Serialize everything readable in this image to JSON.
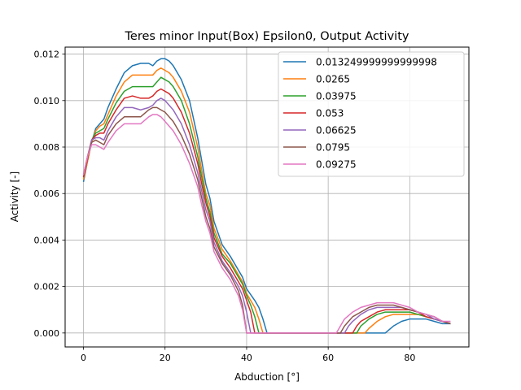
{
  "chart_data": {
    "type": "line",
    "title": "Teres minor Input(Box) Epsilon0, Output Activity",
    "xlabel": "Abduction [°]",
    "ylabel": "Activity [-]",
    "xlim": [
      -4.5,
      94.5
    ],
    "ylim": [
      -0.0006,
      0.0123
    ],
    "xticks": [
      0,
      20,
      40,
      60,
      80
    ],
    "xtick_labels": [
      "0",
      "20",
      "40",
      "60",
      "80"
    ],
    "yticks": [
      0.0,
      0.002,
      0.004,
      0.006,
      0.008,
      0.01,
      0.012
    ],
    "ytick_labels": [
      "0.000",
      "0.002",
      "0.004",
      "0.006",
      "0.008",
      "0.010",
      "0.012"
    ],
    "grid": true,
    "legend_position": "upper-right",
    "series": [
      {
        "name": "0.013249999999999998",
        "color": "#1f77b4",
        "x": [
          0,
          1,
          2,
          3,
          4,
          5,
          6,
          8,
          10,
          12,
          14,
          16,
          17,
          18,
          19,
          20,
          21,
          22,
          24,
          26,
          28,
          29,
          30,
          31,
          32,
          34,
          36,
          38,
          39,
          40,
          42,
          43,
          44,
          45,
          50,
          60,
          70,
          72,
          73,
          74,
          76,
          78,
          80,
          82,
          84,
          86,
          88,
          90
        ],
        "y": [
          0.0065,
          0.0074,
          0.0082,
          0.0088,
          0.009,
          0.0092,
          0.0097,
          0.0105,
          0.0112,
          0.0115,
          0.0116,
          0.0116,
          0.0115,
          0.0117,
          0.0118,
          0.0118,
          0.0117,
          0.0115,
          0.0109,
          0.01,
          0.0084,
          0.0074,
          0.0064,
          0.0058,
          0.0048,
          0.0038,
          0.0033,
          0.0027,
          0.0024,
          0.0019,
          0.0014,
          0.0011,
          0.0006,
          0,
          0,
          0,
          0,
          0,
          0,
          0,
          0.0003,
          0.0005,
          0.0006,
          0.0006,
          0.0006,
          0.0005,
          0.0004,
          0.0004
        ]
      },
      {
        "name": "0.0265",
        "color": "#ff7f0e",
        "x": [
          0,
          1,
          2,
          3,
          4,
          5,
          6,
          8,
          10,
          12,
          14,
          16,
          17,
          18,
          19,
          20,
          21,
          22,
          24,
          26,
          28,
          29,
          30,
          31,
          32,
          34,
          36,
          38,
          39,
          40,
          42,
          43,
          44,
          50,
          60,
          69,
          70,
          72,
          74,
          76,
          78,
          80,
          82,
          84,
          86,
          88,
          90
        ],
        "y": [
          0.0066,
          0.0074,
          0.0082,
          0.0087,
          0.0089,
          0.009,
          0.0094,
          0.0102,
          0.0108,
          0.0111,
          0.0111,
          0.0111,
          0.0111,
          0.0113,
          0.0114,
          0.0113,
          0.0112,
          0.011,
          0.0104,
          0.0095,
          0.008,
          0.007,
          0.006,
          0.0055,
          0.0045,
          0.0036,
          0.0031,
          0.0025,
          0.0022,
          0.0017,
          0.0011,
          0.0006,
          0,
          0,
          0,
          0,
          0.0002,
          0.0005,
          0.0007,
          0.0008,
          0.0008,
          0.0008,
          0.0008,
          0.0007,
          0.0006,
          0.0005,
          0.0004
        ]
      },
      {
        "name": "0.03975",
        "color": "#2ca02c",
        "x": [
          0,
          1,
          2,
          3,
          4,
          5,
          6,
          8,
          10,
          12,
          14,
          16,
          17,
          18,
          19,
          20,
          21,
          22,
          24,
          26,
          28,
          29,
          30,
          31,
          32,
          34,
          36,
          38,
          39,
          40,
          41,
          42,
          43,
          50,
          60,
          67,
          68,
          70,
          72,
          74,
          76,
          78,
          80,
          82,
          84,
          86,
          88,
          90
        ],
        "y": [
          0.0067,
          0.0075,
          0.0083,
          0.0086,
          0.0087,
          0.0088,
          0.0092,
          0.0099,
          0.0104,
          0.0106,
          0.0106,
          0.0106,
          0.0106,
          0.0108,
          0.011,
          0.0109,
          0.0108,
          0.0106,
          0.01,
          0.009,
          0.0076,
          0.0067,
          0.0058,
          0.0052,
          0.0043,
          0.0034,
          0.003,
          0.0024,
          0.0021,
          0.0016,
          0.0012,
          0.0007,
          0,
          0,
          0,
          0,
          0.0003,
          0.0006,
          0.0008,
          0.0009,
          0.0009,
          0.0009,
          0.0009,
          0.0008,
          0.0007,
          0.0006,
          0.0005,
          0.0004
        ]
      },
      {
        "name": "0.053",
        "color": "#d62728",
        "x": [
          0,
          1,
          2,
          3,
          4,
          5,
          6,
          8,
          10,
          12,
          14,
          16,
          17,
          18,
          19,
          20,
          21,
          22,
          24,
          26,
          28,
          29,
          30,
          31,
          32,
          34,
          36,
          38,
          39,
          40,
          41,
          42,
          50,
          60,
          66,
          67,
          68,
          70,
          72,
          74,
          76,
          78,
          80,
          82,
          84,
          86,
          88,
          90
        ],
        "y": [
          0.0067,
          0.0075,
          0.0083,
          0.0085,
          0.0086,
          0.0086,
          0.009,
          0.0096,
          0.0101,
          0.0102,
          0.0101,
          0.0101,
          0.0102,
          0.0104,
          0.0105,
          0.0104,
          0.0103,
          0.0101,
          0.0095,
          0.0086,
          0.0073,
          0.0064,
          0.0056,
          0.005,
          0.0041,
          0.0033,
          0.0028,
          0.0022,
          0.0019,
          0.0014,
          0.0009,
          0,
          0,
          0,
          0,
          0.0003,
          0.0005,
          0.0007,
          0.0009,
          0.001,
          0.001,
          0.001,
          0.001,
          0.0009,
          0.0007,
          0.0006,
          0.0005,
          0.0004
        ]
      },
      {
        "name": "0.06625",
        "color": "#9467bd",
        "x": [
          0,
          1,
          2,
          3,
          4,
          5,
          6,
          8,
          10,
          12,
          14,
          16,
          17,
          18,
          19,
          20,
          21,
          22,
          24,
          26,
          28,
          29,
          30,
          31,
          32,
          34,
          36,
          38,
          39,
          40,
          41,
          50,
          60,
          64,
          65,
          66,
          68,
          70,
          72,
          74,
          76,
          78,
          80,
          82,
          84,
          86,
          88,
          90
        ],
        "y": [
          0.0068,
          0.0076,
          0.0083,
          0.0084,
          0.0084,
          0.0083,
          0.0087,
          0.0093,
          0.0097,
          0.0097,
          0.0096,
          0.0097,
          0.0098,
          0.01,
          0.0101,
          0.01,
          0.0098,
          0.0096,
          0.009,
          0.0081,
          0.0069,
          0.0061,
          0.0053,
          0.0048,
          0.0039,
          0.0031,
          0.0026,
          0.002,
          0.0016,
          0.0009,
          0,
          0,
          0,
          0,
          0.0003,
          0.0005,
          0.0008,
          0.001,
          0.0011,
          0.0011,
          0.0011,
          0.0011,
          0.001,
          0.0009,
          0.0008,
          0.0006,
          0.0005,
          0.0004
        ]
      },
      {
        "name": "0.0795",
        "color": "#8c564b",
        "x": [
          0,
          1,
          2,
          3,
          4,
          5,
          6,
          8,
          10,
          12,
          14,
          16,
          17,
          18,
          19,
          20,
          21,
          22,
          24,
          26,
          28,
          29,
          30,
          31,
          32,
          34,
          36,
          38,
          39,
          40,
          50,
          60,
          63,
          64,
          65,
          66,
          68,
          70,
          72,
          74,
          76,
          78,
          80,
          82,
          84,
          86,
          88,
          90
        ],
        "y": [
          0.0068,
          0.0076,
          0.0082,
          0.0083,
          0.0082,
          0.0081,
          0.0085,
          0.009,
          0.0093,
          0.0093,
          0.0093,
          0.0096,
          0.0097,
          0.0097,
          0.0096,
          0.0095,
          0.0093,
          0.0091,
          0.0085,
          0.0077,
          0.0066,
          0.0058,
          0.005,
          0.0045,
          0.0037,
          0.003,
          0.0025,
          0.0018,
          0.0012,
          0,
          0,
          0,
          0,
          0.0003,
          0.0005,
          0.0007,
          0.0009,
          0.0011,
          0.0012,
          0.0012,
          0.0012,
          0.0011,
          0.001,
          0.0009,
          0.0008,
          0.0007,
          0.0005,
          0.0004
        ]
      },
      {
        "name": "0.09275",
        "color": "#e377c2",
        "x": [
          0,
          1,
          2,
          3,
          4,
          5,
          6,
          8,
          10,
          12,
          14,
          16,
          17,
          18,
          19,
          20,
          21,
          22,
          24,
          26,
          28,
          29,
          30,
          31,
          32,
          34,
          36,
          38,
          39,
          40,
          50,
          60,
          62,
          63,
          64,
          66,
          68,
          70,
          72,
          74,
          76,
          78,
          80,
          82,
          84,
          86,
          88,
          90
        ],
        "y": [
          0.0068,
          0.0076,
          0.0081,
          0.0081,
          0.008,
          0.0079,
          0.0082,
          0.0087,
          0.009,
          0.009,
          0.009,
          0.0093,
          0.0094,
          0.0094,
          0.0093,
          0.0091,
          0.0089,
          0.0087,
          0.0081,
          0.0073,
          0.0063,
          0.0055,
          0.0048,
          0.0043,
          0.0035,
          0.0028,
          0.0023,
          0.0016,
          0.001,
          0,
          0,
          0,
          0,
          0.0003,
          0.0006,
          0.0009,
          0.0011,
          0.0012,
          0.0013,
          0.0013,
          0.0013,
          0.0012,
          0.0011,
          0.0009,
          0.0008,
          0.0007,
          0.0005,
          0.0005
        ]
      }
    ]
  }
}
